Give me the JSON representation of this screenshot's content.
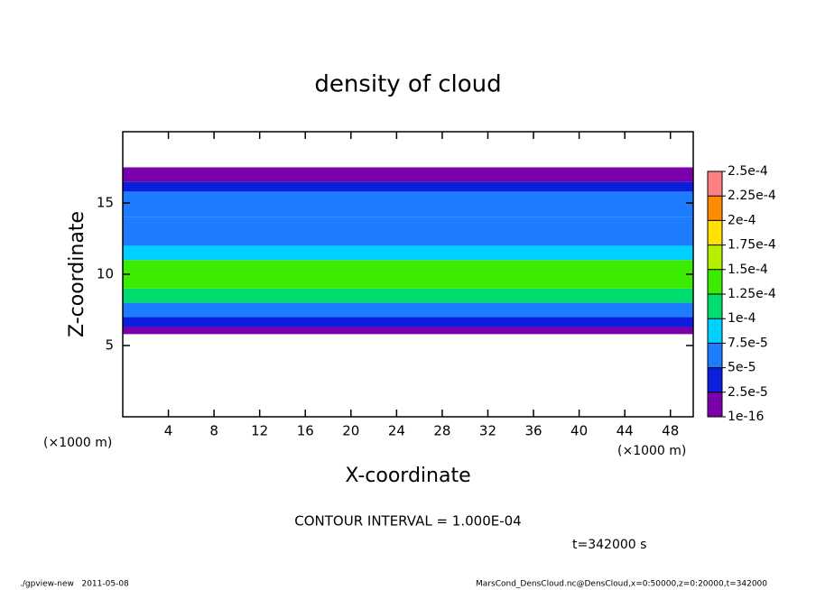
{
  "chart_data": {
    "type": "heatmap",
    "title": "density of cloud",
    "xlabel": "X-coordinate",
    "ylabel": "Z-coordinate",
    "x_unit": "(×1000 m)",
    "xlim": [
      0,
      50
    ],
    "xticks": [
      4,
      8,
      12,
      16,
      20,
      24,
      28,
      32,
      36,
      40,
      44,
      48
    ],
    "ylim": [
      0,
      20
    ],
    "yticks": [
      5,
      10,
      15
    ],
    "z_edges": [
      5.8,
      6.3,
      7.0,
      8.0,
      9.0,
      11.0,
      12.0,
      14.0,
      15.8,
      16.5,
      17.5
    ],
    "values": [
      1e-05,
      3e-05,
      7e-05,
      0.0001,
      0.00013,
      9e-05,
      6e-05,
      5e-05,
      3e-05,
      1e-05
    ],
    "colorbar": {
      "ticks": [
        {
          "value": 1e-16,
          "label": "1e-16"
        },
        {
          "value": 2.5e-05,
          "label": "2.5e-5"
        },
        {
          "value": 5e-05,
          "label": "5e-5"
        },
        {
          "value": 7.5e-05,
          "label": "7.5e-5"
        },
        {
          "value": 0.0001,
          "label": "1e-4"
        },
        {
          "value": 0.000125,
          "label": "1.25e-4"
        },
        {
          "value": 0.00015,
          "label": "1.5e-4"
        },
        {
          "value": 0.000175,
          "label": "1.75e-4"
        },
        {
          "value": 0.0002,
          "label": "2e-4"
        },
        {
          "value": 0.000225,
          "label": "2.25e-4"
        },
        {
          "value": 0.00025,
          "label": "2.5e-4"
        }
      ],
      "colors": [
        "#7a00aa",
        "#0a1edc",
        "#1e7cff",
        "#00d0ff",
        "#00dc6e",
        "#3cec00",
        "#b4f000",
        "#ffe000",
        "#ff8c00",
        "#ff8080"
      ]
    },
    "contour_note": "CONTOUR INTERVAL = 1.000E-04",
    "time_note": "t=342000 s",
    "footer_left": "./gpview-new   2011-05-08",
    "footer_right": "MarsCond_DensCloud.nc@DensCloud,x=0:50000,z=0:20000,t=342000"
  }
}
